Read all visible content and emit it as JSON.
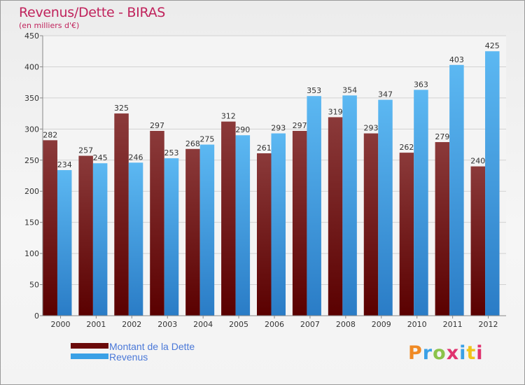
{
  "title": "Revenus/Dette - BIRAS",
  "subtitle": "(en milliers d'€)",
  "legend": [
    {
      "label": "Montant de la Dette",
      "color": "#6b0a0a"
    },
    {
      "label": "Revenus",
      "color": "#3aa0e6"
    }
  ],
  "logo": {
    "text": "Proxiti",
    "colors": [
      "#f08a24",
      "#3aa0e6",
      "#8bc34a",
      "#e0336e",
      "#3aa0e6",
      "#f0c419",
      "#e0336e"
    ]
  },
  "chart_data": {
    "type": "bar",
    "categories": [
      "2000",
      "2001",
      "2002",
      "2003",
      "2004",
      "2005",
      "2006",
      "2007",
      "2008",
      "2009",
      "2010",
      "2011",
      "2012"
    ],
    "series": [
      {
        "name": "Montant de la Dette",
        "color_top": "#8b3a3a",
        "color_bottom": "#5a0000",
        "values": [
          282,
          257,
          325,
          297,
          268,
          312,
          261,
          297,
          319,
          293,
          262,
          279,
          240
        ]
      },
      {
        "name": "Revenus",
        "color_top": "#5cb8f2",
        "color_bottom": "#2a7cc6",
        "values": [
          234,
          245,
          246,
          253,
          275,
          290,
          293,
          353,
          354,
          347,
          363,
          403,
          425
        ]
      }
    ],
    "ylim": [
      0,
      450
    ],
    "yticks": [
      0,
      50,
      100,
      150,
      200,
      250,
      300,
      350,
      400,
      450
    ],
    "grid": true
  }
}
